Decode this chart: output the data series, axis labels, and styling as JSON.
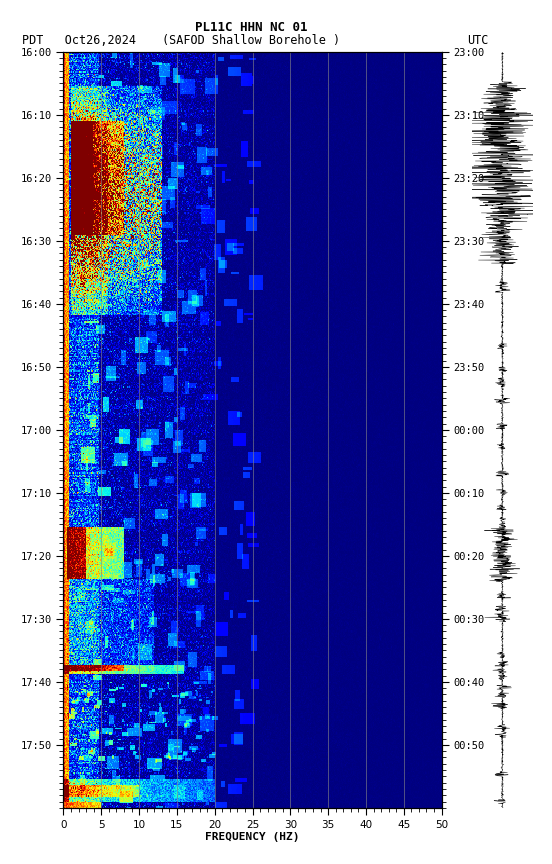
{
  "title_line1": "PL11C HHN NC 01",
  "title_line2_left": "PDT   Oct26,2024",
  "title_line2_center": "(SAFOD Shallow Borehole )",
  "title_line2_right": "UTC",
  "xlabel": "FREQUENCY (HZ)",
  "freq_min": 0,
  "freq_max": 50,
  "yticks_pdt": [
    "16:00",
    "16:10",
    "16:20",
    "16:30",
    "16:40",
    "16:50",
    "17:00",
    "17:10",
    "17:20",
    "17:30",
    "17:40",
    "17:50"
  ],
  "yticks_utc": [
    "23:00",
    "23:10",
    "23:20",
    "23:30",
    "23:40",
    "23:50",
    "00:00",
    "00:10",
    "00:20",
    "00:30",
    "00:40",
    "00:50"
  ],
  "xticks": [
    0,
    5,
    10,
    15,
    20,
    25,
    30,
    35,
    40,
    45,
    50
  ],
  "grid_color": "#888888",
  "colormap": "jet",
  "vertical_lines_freq": [
    5,
    10,
    15,
    20,
    25,
    30,
    35,
    40,
    45
  ]
}
